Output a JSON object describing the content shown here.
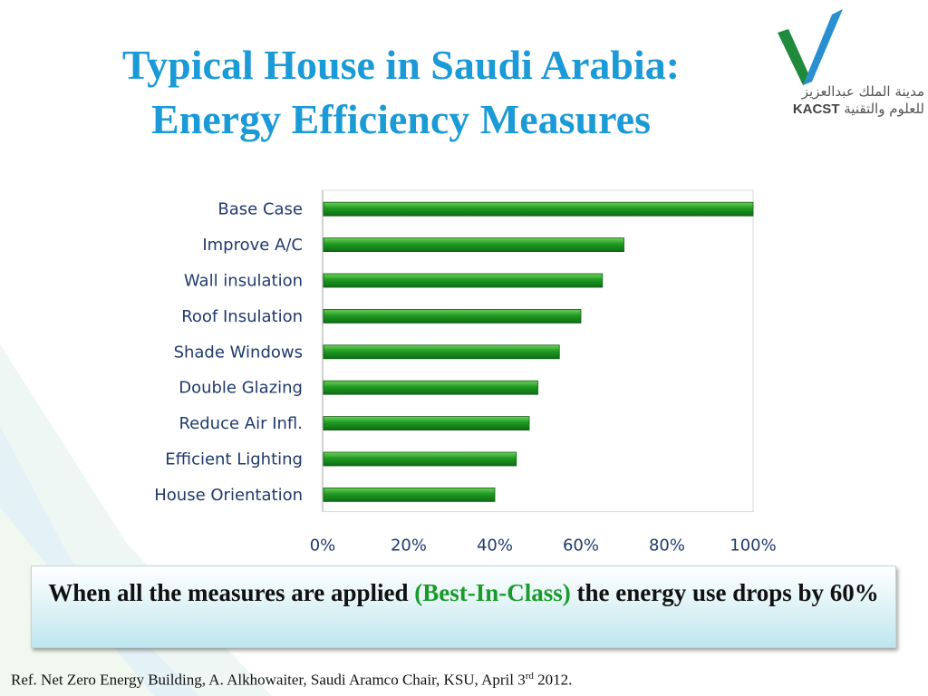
{
  "title": {
    "line1": "Typical House in Saudi Arabia:",
    "line2": "Energy Efficiency Measures"
  },
  "logo": {
    "arabic_line1": "مدينة الملك عبدالعزيز",
    "arabic_line2": "للعلوم والتقنية",
    "latin": "KACST",
    "colors": {
      "green": "#1f8a3c",
      "blue": "#2a8fd0"
    }
  },
  "chart_data": {
    "type": "bar",
    "orientation": "horizontal",
    "categories": [
      "Base Case",
      "Improve A/C",
      "Wall insulation",
      "Roof Insulation",
      "Shade Windows",
      "Double Glazing",
      "Reduce Air Infl.",
      "Efficient Lighting",
      "House Orientation"
    ],
    "values": [
      100,
      70,
      65,
      60,
      55,
      50,
      48,
      45,
      40
    ],
    "xlim": [
      0,
      100
    ],
    "xticks": [
      "0%",
      "20%",
      "40%",
      "60%",
      "80%",
      "100%"
    ],
    "grid": false,
    "bar_color": "#1e9a22"
  },
  "callout": {
    "text_before": "When all the measures are applied ",
    "highlight": "(Best-In-Class)",
    "text_after": " the energy use drops by 60%",
    "highlight_color": "#1a9a2a"
  },
  "reference": {
    "text_before": "Ref. Net Zero Energy Building, A. Alkhowaiter, Saudi Aramco Chair, KSU, April 3",
    "sup": "rd",
    "text_after": " 2012."
  }
}
